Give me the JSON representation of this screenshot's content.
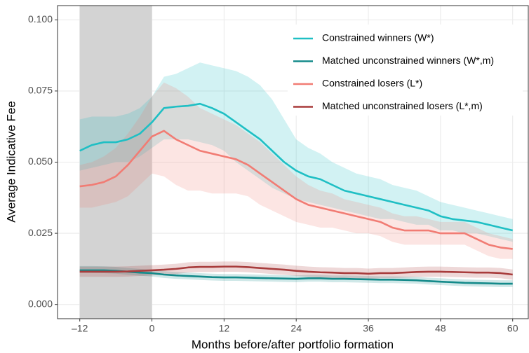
{
  "chart_data": {
    "type": "line",
    "xlabel": "Months before/after portfolio formation",
    "ylabel": "Average Indicative Fee",
    "x": [
      -12,
      -10,
      -8,
      -6,
      -4,
      -2,
      0,
      2,
      4,
      6,
      8,
      10,
      12,
      14,
      16,
      18,
      20,
      22,
      24,
      26,
      28,
      30,
      32,
      34,
      36,
      38,
      40,
      42,
      44,
      46,
      48,
      50,
      52,
      54,
      56,
      58,
      60
    ],
    "xlim": [
      -15.7,
      62.6
    ],
    "xticks": [
      {
        "value": -12,
        "label": "–12"
      },
      0,
      12,
      24,
      36,
      48,
      60
    ],
    "ylim": [
      -0.005,
      0.105
    ],
    "yticks": [
      {
        "value": 0,
        "label": "0.000"
      },
      {
        "value": 0.025,
        "label": "0.025"
      },
      {
        "value": 0.05,
        "label": "0.050"
      },
      {
        "value": 0.075,
        "label": "0.075"
      },
      {
        "value": 0.1,
        "label": "0.100"
      }
    ],
    "grid": true,
    "legend": "top-right",
    "shade": [
      -12,
      0
    ],
    "shade_color": "#d3d3d3",
    "series": [
      {
        "name": "Constrained winners (W*)",
        "color": "#1fbfc4",
        "values": [
          0.054,
          0.056,
          0.057,
          0.057,
          0.058,
          0.06,
          0.064,
          0.069,
          0.0695,
          0.0698,
          0.0705,
          0.069,
          0.067,
          0.064,
          0.061,
          0.058,
          0.054,
          0.05,
          0.047,
          0.045,
          0.044,
          0.042,
          0.04,
          0.039,
          0.038,
          0.037,
          0.036,
          0.035,
          0.034,
          0.033,
          0.031,
          0.03,
          0.0295,
          0.029,
          0.028,
          0.027,
          0.026
        ],
        "upper": [
          0.065,
          0.066,
          0.066,
          0.066,
          0.067,
          0.069,
          0.073,
          0.08,
          0.081,
          0.083,
          0.085,
          0.084,
          0.083,
          0.082,
          0.08,
          0.077,
          0.072,
          0.065,
          0.058,
          0.055,
          0.053,
          0.05,
          0.048,
          0.046,
          0.045,
          0.044,
          0.042,
          0.041,
          0.04,
          0.038,
          0.036,
          0.035,
          0.034,
          0.033,
          0.032,
          0.031,
          0.03
        ],
        "lower": [
          0.047,
          0.048,
          0.049,
          0.05,
          0.05,
          0.052,
          0.055,
          0.058,
          0.058,
          0.058,
          0.057,
          0.056,
          0.054,
          0.05,
          0.047,
          0.044,
          0.041,
          0.039,
          0.037,
          0.036,
          0.035,
          0.034,
          0.033,
          0.032,
          0.031,
          0.03,
          0.03,
          0.029,
          0.028,
          0.028,
          0.026,
          0.026,
          0.025,
          0.025,
          0.024,
          0.023,
          0.022
        ]
      },
      {
        "name": "Matched unconstrained winners (W*,m)",
        "color": "#148a8a",
        "values": [
          0.012,
          0.012,
          0.012,
          0.0118,
          0.0115,
          0.0112,
          0.011,
          0.0105,
          0.0102,
          0.01,
          0.0098,
          0.0096,
          0.0095,
          0.0095,
          0.0094,
          0.0093,
          0.0092,
          0.0091,
          0.009,
          0.0092,
          0.0092,
          0.009,
          0.009,
          0.0089,
          0.0088,
          0.0087,
          0.0087,
          0.0086,
          0.0085,
          0.0082,
          0.008,
          0.0078,
          0.0076,
          0.0075,
          0.0074,
          0.0073,
          0.0073
        ],
        "upper": [
          0.0135,
          0.0135,
          0.0134,
          0.0132,
          0.0128,
          0.0125,
          0.0122,
          0.0117,
          0.0114,
          0.0112,
          0.011,
          0.0108,
          0.0107,
          0.0107,
          0.0106,
          0.0105,
          0.0104,
          0.0103,
          0.0102,
          0.0104,
          0.0104,
          0.0102,
          0.0102,
          0.0101,
          0.01,
          0.0099,
          0.0099,
          0.0098,
          0.0097,
          0.0094,
          0.0092,
          0.009,
          0.0088,
          0.0087,
          0.0086,
          0.0085,
          0.0085
        ],
        "lower": [
          0.0111,
          0.0111,
          0.011,
          0.0108,
          0.0104,
          0.0101,
          0.0098,
          0.0093,
          0.009,
          0.0088,
          0.0086,
          0.0084,
          0.0083,
          0.0083,
          0.0082,
          0.0081,
          0.008,
          0.0079,
          0.0078,
          0.008,
          0.008,
          0.0078,
          0.0078,
          0.0077,
          0.0076,
          0.0075,
          0.0075,
          0.0074,
          0.0073,
          0.007,
          0.0068,
          0.0066,
          0.0064,
          0.0063,
          0.0062,
          0.0061,
          0.0061
        ]
      },
      {
        "name": "Constrained losers (L*)",
        "color": "#f17c74",
        "values": [
          0.0415,
          0.042,
          0.043,
          0.045,
          0.049,
          0.054,
          0.059,
          0.061,
          0.058,
          0.056,
          0.054,
          0.053,
          0.052,
          0.051,
          0.049,
          0.046,
          0.043,
          0.04,
          0.037,
          0.035,
          0.034,
          0.033,
          0.032,
          0.031,
          0.03,
          0.029,
          0.027,
          0.026,
          0.026,
          0.026,
          0.025,
          0.025,
          0.025,
          0.023,
          0.021,
          0.02,
          0.0195
        ],
        "upper": [
          0.049,
          0.05,
          0.052,
          0.055,
          0.06,
          0.066,
          0.073,
          0.078,
          0.076,
          0.073,
          0.069,
          0.067,
          0.065,
          0.063,
          0.06,
          0.057,
          0.053,
          0.049,
          0.045,
          0.042,
          0.04,
          0.039,
          0.037,
          0.036,
          0.035,
          0.034,
          0.032,
          0.031,
          0.031,
          0.03,
          0.029,
          0.029,
          0.029,
          0.027,
          0.025,
          0.024,
          0.023
        ],
        "lower": [
          0.034,
          0.034,
          0.035,
          0.036,
          0.038,
          0.042,
          0.046,
          0.045,
          0.042,
          0.04,
          0.04,
          0.039,
          0.039,
          0.039,
          0.038,
          0.035,
          0.033,
          0.031,
          0.029,
          0.028,
          0.027,
          0.027,
          0.026,
          0.025,
          0.025,
          0.024,
          0.022,
          0.021,
          0.021,
          0.021,
          0.021,
          0.021,
          0.021,
          0.019,
          0.017,
          0.016,
          0.016
        ]
      },
      {
        "name": "Matched unconstrained losers (L*,m)",
        "color": "#a83c3c",
        "values": [
          0.0115,
          0.0115,
          0.0115,
          0.0115,
          0.0116,
          0.0118,
          0.012,
          0.0122,
          0.0125,
          0.013,
          0.0132,
          0.0132,
          0.0133,
          0.0133,
          0.0131,
          0.0128,
          0.0125,
          0.0122,
          0.0118,
          0.0115,
          0.0113,
          0.0112,
          0.011,
          0.011,
          0.0108,
          0.011,
          0.011,
          0.0112,
          0.0114,
          0.0115,
          0.0115,
          0.0114,
          0.0113,
          0.0112,
          0.0112,
          0.011,
          0.0105
        ],
        "upper": [
          0.0133,
          0.0133,
          0.0133,
          0.0133,
          0.0134,
          0.0136,
          0.0138,
          0.014,
          0.0143,
          0.0148,
          0.015,
          0.015,
          0.0151,
          0.0151,
          0.0149,
          0.0146,
          0.0143,
          0.014,
          0.0136,
          0.0133,
          0.0131,
          0.013,
          0.0128,
          0.0128,
          0.0126,
          0.0128,
          0.0128,
          0.013,
          0.0132,
          0.0133,
          0.0133,
          0.0132,
          0.0131,
          0.013,
          0.013,
          0.0128,
          0.0123
        ],
        "lower": [
          0.0097,
          0.0097,
          0.0097,
          0.0097,
          0.0098,
          0.01,
          0.0102,
          0.0104,
          0.0107,
          0.0112,
          0.0114,
          0.0114,
          0.0115,
          0.0115,
          0.0113,
          0.011,
          0.0107,
          0.0104,
          0.01,
          0.0097,
          0.0095,
          0.0094,
          0.0092,
          0.0092,
          0.009,
          0.0092,
          0.0092,
          0.0094,
          0.0096,
          0.0097,
          0.0097,
          0.0096,
          0.0095,
          0.0094,
          0.0094,
          0.0092,
          0.0087
        ]
      }
    ]
  }
}
